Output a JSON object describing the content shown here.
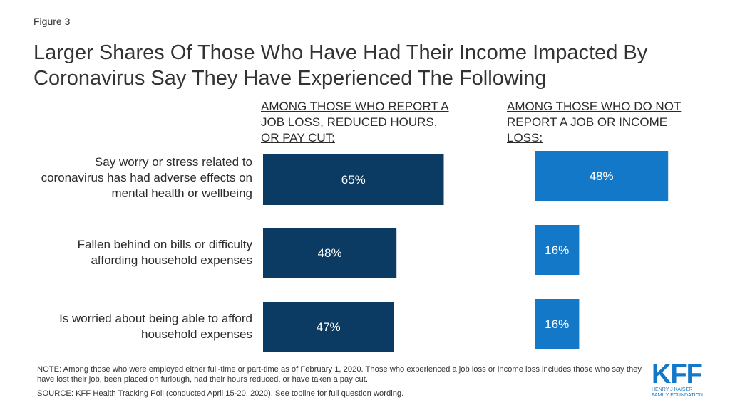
{
  "figure_label": "Figure 3",
  "chart_data": {
    "type": "bar",
    "orientation": "horizontal",
    "title": "Larger Shares Of Those Who Have Had Their Income Impacted By Coronavirus Say They Have Experienced The Following",
    "categories": [
      "Say worry or stress related to coronavirus has had adverse effects on mental health or wellbeing",
      "Fallen behind on bills or difficulty affording household expenses",
      "Is worried about being able to afford household expenses"
    ],
    "series": [
      {
        "name": "AMONG THOSE WHO REPORT A JOB LOSS, REDUCED HOURS, OR PAY CUT:",
        "values": [
          65,
          48,
          47
        ],
        "labels": [
          "65%",
          "48%",
          "47%"
        ],
        "color": "#0b3a63"
      },
      {
        "name": "AMONG THOSE WHO DO NOT REPORT A JOB OR INCOME LOSS:",
        "values": [
          48,
          16,
          16
        ],
        "labels": [
          "48%",
          "16%",
          "16%"
        ],
        "color": "#1478c8"
      }
    ],
    "xlim": [
      0,
      100
    ],
    "grid": false,
    "legend": "column-headers"
  },
  "column_headers": [
    "AMONG THOSE WHO REPORT A\nJOB LOSS,  REDUCED HOURS,\nOR PAY CUT:",
    "AMONG THOSE WHO DO NOT\nREPORT A JOB OR INCOME\nLOSS:"
  ],
  "category_labels": [
    "Say worry or stress related to\ncoronavirus has had adverse effects on\nmental health or wellbeing",
    "Fallen behind on bills or difficulty\naffording household expenses",
    "Is worried about being able to afford\nhousehold expenses"
  ],
  "note": "NOTE: Among those who were employed either full-time or part-time as of February 1, 2020. Those who experienced a job loss or income loss includes those who say they have lost their job, been placed on furlough, had their hours reduced, or have taken a pay cut.",
  "source": "SOURCE: KFF Health Tracking Poll (conducted April 15-20, 2020). See topline for full question wording.",
  "logo": {
    "mark": "KFF",
    "subtitle": "HENRY J KAISER\nFAMILY FOUNDATION"
  }
}
